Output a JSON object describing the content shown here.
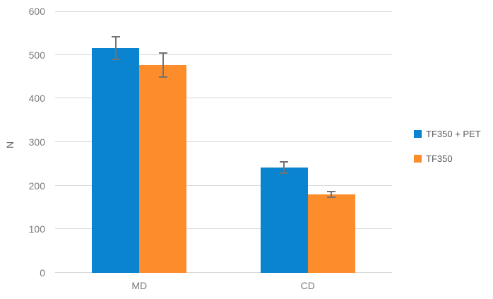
{
  "chart_data": {
    "type": "bar",
    "categories": [
      "MD",
      "CD"
    ],
    "series": [
      {
        "name": "TF350 + PET",
        "color": "#0a84ce",
        "values": [
          515,
          242
        ],
        "errors": [
          26,
          13
        ]
      },
      {
        "name": "TF350",
        "color": "#fd8d2b",
        "values": [
          477,
          180
        ],
        "errors": [
          28,
          7
        ]
      }
    ],
    "ylabel": "N",
    "xlabel": "",
    "ylim": [
      0,
      600
    ],
    "yticks": [
      0,
      100,
      200,
      300,
      400,
      500,
      600
    ],
    "grid": true,
    "legend_position": "right",
    "colors": {
      "gridline": "#d9d9d9",
      "axis_line": "#d9d9d9",
      "tick_label": "#7b7b7b",
      "axis_title": "#666666",
      "legend_text": "#595959",
      "error_bar": "#737373",
      "background": "#ffffff"
    }
  }
}
